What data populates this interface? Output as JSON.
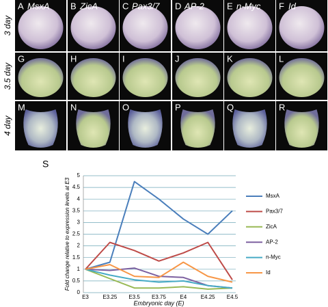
{
  "figure": {
    "columns": [
      "MsxA",
      "ZicA",
      "Pax3/7",
      "AP-2",
      "n-Myc",
      "Id"
    ],
    "rows": [
      "3 day",
      "3.5 day",
      "4 day"
    ],
    "panels": [
      "A",
      "B",
      "C",
      "D",
      "E",
      "F",
      "G",
      "H",
      "I",
      "J",
      "K",
      "L",
      "M",
      "N",
      "O",
      "P",
      "Q",
      "R"
    ],
    "chart_label": "S"
  },
  "chart_data": {
    "type": "line",
    "x_label": "Embryonic day (E)",
    "y_label": "Fold change relative to expression levels at E3",
    "categories": [
      "E3",
      "E3.25",
      "E3.5",
      "E3.75",
      "E4",
      "E4.25",
      "E4.5"
    ],
    "series": [
      {
        "name": "MsxA",
        "color": "#4a7ebb",
        "values": [
          1,
          1.3,
          4.75,
          4.0,
          3.15,
          2.5,
          3.5
        ]
      },
      {
        "name": "Pax3/7",
        "color": "#be4b48",
        "values": [
          1,
          2.15,
          1.8,
          1.35,
          1.7,
          2.15,
          0.55
        ]
      },
      {
        "name": "ZicA",
        "color": "#98b954",
        "values": [
          1,
          0.6,
          0.2,
          0.2,
          0.25,
          0.15,
          0.2
        ]
      },
      {
        "name": "AP-2",
        "color": "#7d60a0",
        "values": [
          1,
          0.95,
          1.05,
          0.7,
          0.65,
          0.3,
          0.2
        ]
      },
      {
        "name": "n-Myc",
        "color": "#46aac5",
        "values": [
          1,
          0.75,
          0.55,
          0.45,
          0.5,
          0.3,
          0.2
        ]
      },
      {
        "name": "Id",
        "color": "#f79646",
        "values": [
          1,
          1.2,
          0.7,
          0.65,
          1.3,
          0.7,
          0.45
        ]
      }
    ],
    "ylim": [
      0,
      5
    ],
    "yticks": [
      0,
      0.5,
      1,
      1.5,
      2,
      2.5,
      3,
      3.5,
      4,
      4.5,
      5
    ],
    "grid": true,
    "legend": "right"
  }
}
